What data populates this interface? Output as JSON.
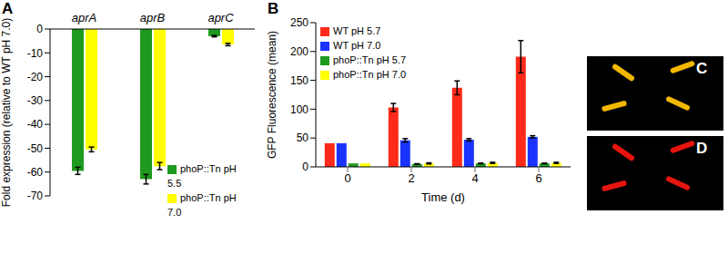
{
  "chart_data": [
    {
      "panel_label": "A",
      "type": "bar",
      "categories": [
        "aprA",
        "aprB",
        "aprC"
      ],
      "y_label": "Fold expression (relative to WT pH 7.0)",
      "ylim": [
        -70,
        0
      ],
      "yticks": [
        -70,
        -60,
        -50,
        -40,
        -30,
        -20,
        -10,
        0
      ],
      "grid": false,
      "legend": "lower right",
      "series": [
        {
          "name": "phoP::Tn pH 5.5",
          "color": "#1e9a1e",
          "values": [
            -59.5,
            -63,
            -3
          ],
          "errors": [
            1.5,
            2,
            0.3
          ]
        },
        {
          "name": "phoP::Tn pH 7.0",
          "color": "#ffff00",
          "values": [
            -50.5,
            -57.5,
            -6.5
          ],
          "errors": [
            1,
            1.5,
            0.5
          ]
        }
      ]
    },
    {
      "panel_label": "B",
      "type": "bar",
      "categories": [
        "0",
        "2",
        "4",
        "6"
      ],
      "x_label": "Time (d)",
      "y_label": "GFP Fluorescence (mean)",
      "ylim": [
        0,
        250
      ],
      "yticks": [
        0,
        50,
        100,
        150,
        200,
        250
      ],
      "grid": false,
      "legend": "upper left",
      "series": [
        {
          "name": "WT pH 5.7",
          "color": "#ff2a1a",
          "values": [
            41,
            103,
            137,
            191
          ],
          "errors": [
            0,
            7,
            12,
            28
          ]
        },
        {
          "name": "WT pH 7.0",
          "color": "#1a33ff",
          "values": [
            41,
            46,
            47,
            52
          ],
          "errors": [
            0,
            3,
            2,
            2
          ]
        },
        {
          "name": "phoP::Tn pH 5.7",
          "color": "#1e9a1e",
          "values": [
            6,
            5,
            6,
            6
          ],
          "errors": [
            0,
            0.5,
            0.5,
            0.5
          ]
        },
        {
          "name": "phoP::Tn pH 7.0",
          "color": "#ffff00",
          "values": [
            6,
            6,
            7,
            7
          ],
          "errors": [
            0,
            1,
            1,
            1
          ]
        }
      ]
    }
  ],
  "images": [
    {
      "panel_label": "C"
    },
    {
      "panel_label": "D"
    }
  ]
}
